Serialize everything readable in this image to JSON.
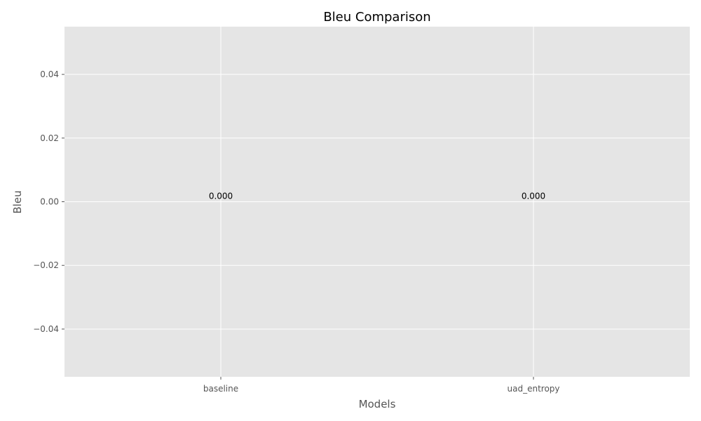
{
  "chart_data": {
    "type": "bar",
    "title": "Bleu Comparison",
    "xlabel": "Models",
    "ylabel": "Bleu",
    "categories": [
      "baseline",
      "uad_entropy"
    ],
    "values": [
      0.0,
      0.0
    ],
    "data_labels": [
      "0.000",
      "0.000"
    ],
    "ylim": [
      -0.055,
      0.055
    ],
    "yticks": [
      0.04,
      0.02,
      0.0,
      -0.02,
      -0.04
    ],
    "ytick_labels": [
      "0.04",
      "0.02",
      "0.00",
      "−0.02",
      "−0.04"
    ],
    "grid": true,
    "colors": {
      "plot_background": "#e5e5e5",
      "grid": "#ffffff",
      "text": "#555555",
      "title": "#000000"
    }
  }
}
